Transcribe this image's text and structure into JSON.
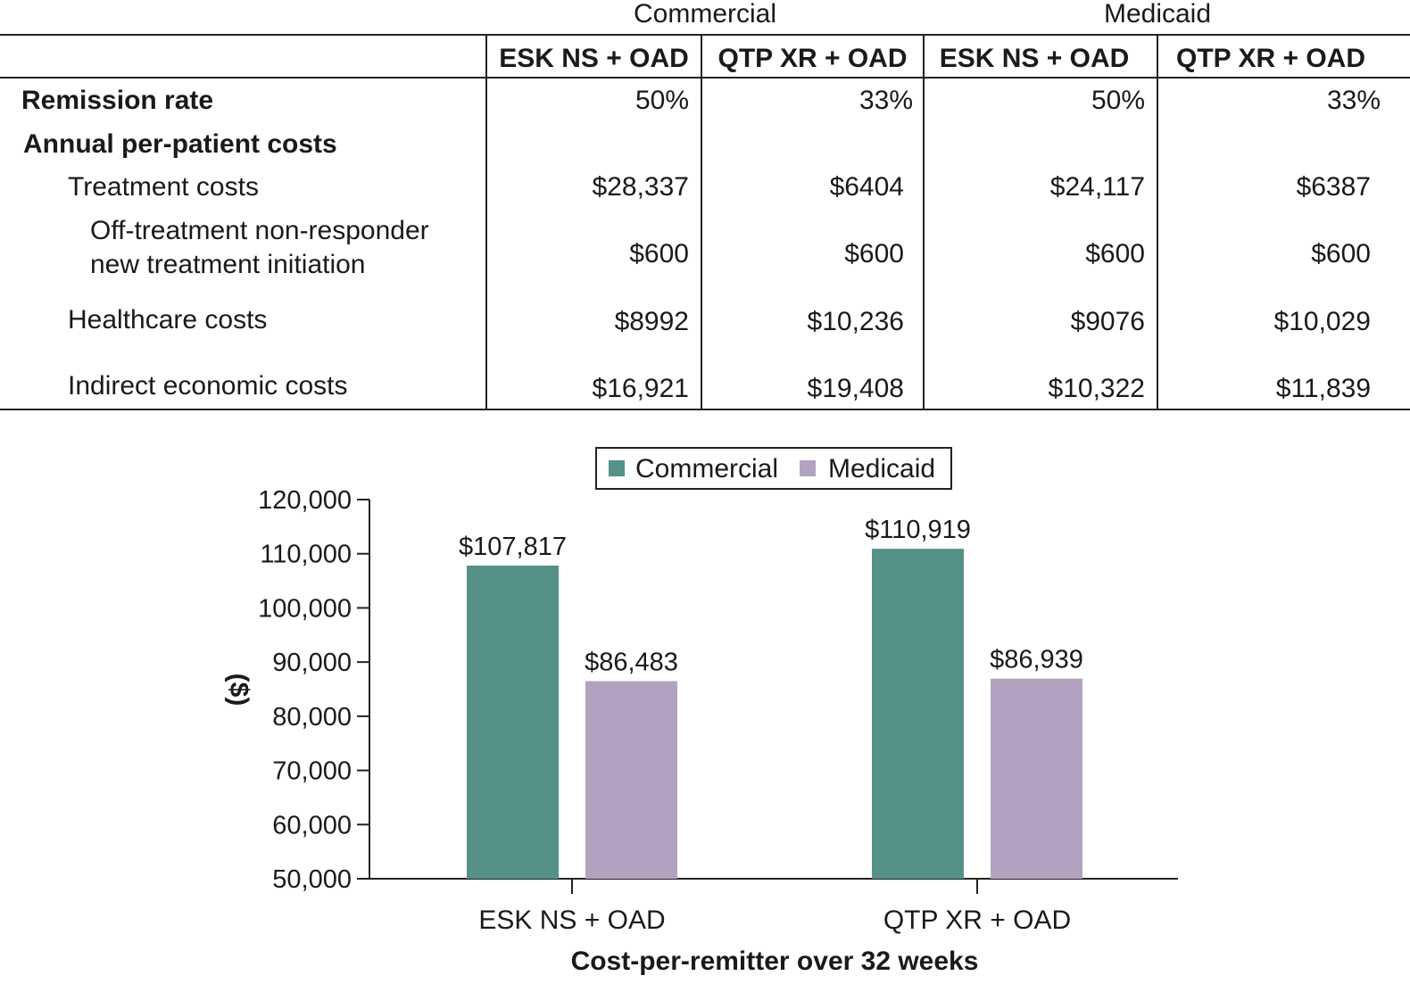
{
  "table": {
    "groups": [
      "Commercial",
      "Medicaid"
    ],
    "columns": [
      "ESK NS + OAD",
      "QTP XR + OAD",
      "ESK NS + OAD",
      "QTP XR + OAD"
    ],
    "rows": [
      {
        "label": "Remission rate",
        "values": [
          "50%",
          "33%",
          "50%",
          "33%"
        ]
      },
      {
        "label": "Annual per-patient costs",
        "values": [
          "",
          "",
          "",
          ""
        ]
      },
      {
        "label": "Treatment costs",
        "values": [
          "$28,337",
          "$6404",
          "$24,117",
          "$6387"
        ]
      },
      {
        "label_lines": [
          "Off-treatment non-responder",
          "new treatment initiation"
        ],
        "values": [
          "$600",
          "$600",
          "$600",
          "$600"
        ]
      },
      {
        "label": "Healthcare costs",
        "values": [
          "$8992",
          "$10,236",
          "$9076",
          "$10,029"
        ]
      },
      {
        "label": "Indirect economic costs",
        "values": [
          "$16,921",
          "$19,408",
          "$10,322",
          "$11,839"
        ]
      }
    ]
  },
  "chart_data": {
    "type": "bar",
    "categories": [
      "ESK NS + OAD",
      "QTP XR + OAD"
    ],
    "series": [
      {
        "name": "Commercial",
        "values": [
          107817,
          110919
        ],
        "labels": [
          "$107,817",
          "$110,919"
        ],
        "color": "#559186"
      },
      {
        "name": "Medicaid",
        "values": [
          86483,
          86939
        ],
        "labels": [
          "$86,483",
          "$86,939"
        ],
        "color": "#b3a2bf"
      }
    ],
    "xlabel": "Cost-per-remitter over 32 weeks",
    "ylabel": "($)",
    "ylim": [
      50000,
      120000
    ],
    "yticks": [
      50000,
      60000,
      70000,
      80000,
      90000,
      100000,
      110000,
      120000
    ],
    "ytick_labels": [
      "50,000",
      "60,000",
      "70,000",
      "80,000",
      "90,000",
      "100,000",
      "110,000",
      "120,000"
    ],
    "legend_position": "top-center",
    "grid": false
  }
}
